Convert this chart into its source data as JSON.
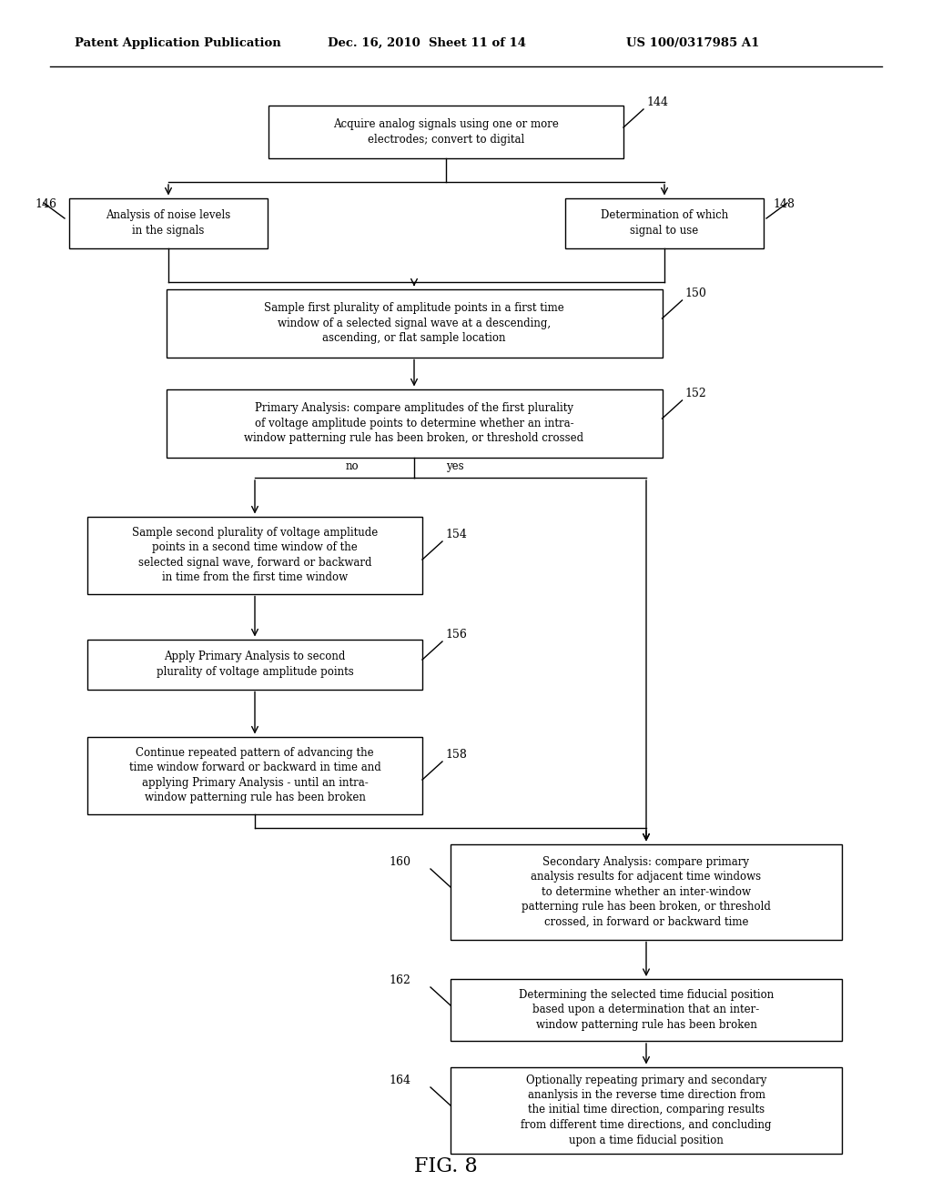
{
  "bg_color": "#ffffff",
  "header_left": "Patent Application Publication",
  "header_mid": "Dec. 16, 2010  Sheet 11 of 14",
  "header_right": "US 100/0317985 A1",
  "figure_label": "FIG. 8",
  "box144_text": "Acquire analog signals using one or more\nelectrodes; convert to digital",
  "box146_text": "Analysis of noise levels\nin the signals",
  "box148_text": "Determination of which\nsignal to use",
  "box150_text": "Sample first plurality of amplitude points in a first time\nwindow of a selected signal wave at a descending,\nascending, or flat sample location",
  "box152_text": "Primary Analysis: compare amplitudes of the first plurality\nof voltage amplitude points to determine whether an intra-\nwindow patterning rule has been broken, or threshold crossed",
  "box154_text": "Sample second plurality of voltage amplitude\npoints in a second time window of the\nselected signal wave, forward or backward\nin time from the first time window",
  "box156_text": "Apply Primary Analysis to second\nplurality of voltage amplitude points",
  "box158_text": "Continue repeated pattern of advancing the\ntime window forward or backward in time and\napplying Primary Analysis - until an intra-\nwindow patterning rule has been broken",
  "box160_text": "Secondary Analysis: compare primary\nanalysis results for adjacent time windows\nto determine whether an inter-window\npatterning rule has been broken, or threshold\ncrossed, in forward or backward time",
  "box162_text": "Determining the selected time fiducial position\nbased upon a determination that an inter-\nwindow patterning rule has been broken",
  "box164_text": "Optionally repeating primary and secondary\nananlysis in the reverse time direction from\nthe initial time direction, comparing results\nfrom different time directions, and concluding\nupon a time fiducial position"
}
